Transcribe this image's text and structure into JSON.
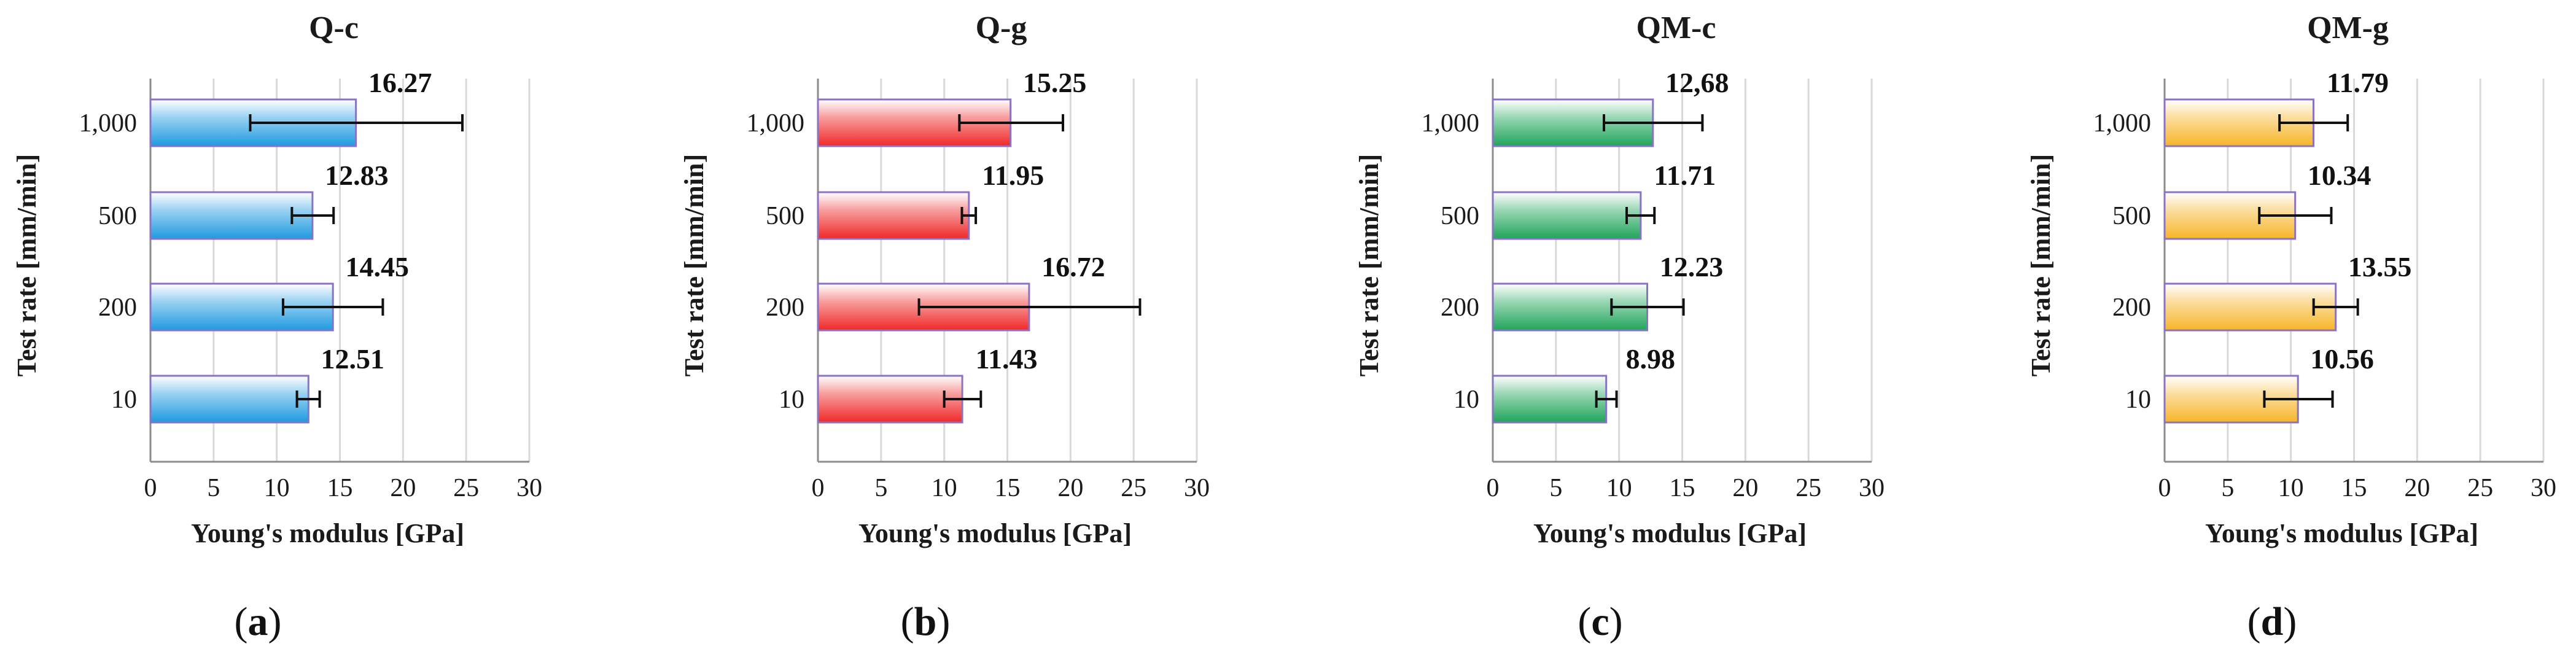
{
  "chart_data": [
    {
      "type": "bar",
      "orientation": "horizontal",
      "title": "Q-c",
      "caption": "a",
      "xlabel": "Young's modulus [GPa]",
      "ylabel": "Test rate [mm/min]",
      "categories": [
        "1,000",
        "500",
        "200",
        "10"
      ],
      "values": [
        16.27,
        12.83,
        14.45,
        12.51
      ],
      "value_labels": [
        "16.27",
        "12.83",
        "14.45",
        "12.51"
      ],
      "error_low": [
        7.9,
        11.2,
        10.5,
        11.6
      ],
      "error_high": [
        24.7,
        14.5,
        18.4,
        13.4
      ],
      "xlim": [
        0,
        30
      ],
      "xticks": [
        "0",
        "5",
        "10",
        "15",
        "20",
        "25",
        "30"
      ],
      "color": "#1e9ae0",
      "grid": true
    },
    {
      "type": "bar",
      "orientation": "horizontal",
      "title": "Q-g",
      "caption": "b",
      "xlabel": "Young's modulus [GPa]",
      "ylabel": "Test rate [mm/min]",
      "categories": [
        "1,000",
        "500",
        "200",
        "10"
      ],
      "values": [
        15.25,
        11.95,
        16.72,
        11.43
      ],
      "value_labels": [
        "15.25",
        "11.95",
        "16.72",
        "11.43"
      ],
      "error_low": [
        11.2,
        11.4,
        8.0,
        10.0
      ],
      "error_high": [
        19.4,
        12.5,
        25.5,
        12.9
      ],
      "xlim": [
        0,
        30
      ],
      "xticks": [
        "0",
        "5",
        "10",
        "15",
        "20",
        "25",
        "30"
      ],
      "color": "#f02828",
      "grid": true
    },
    {
      "type": "bar",
      "orientation": "horizontal",
      "title": "QM-c",
      "caption": "c",
      "xlabel": "Young's modulus [GPa]",
      "ylabel": "Test rate [mm/min]",
      "categories": [
        "1,000",
        "500",
        "200",
        "10"
      ],
      "values": [
        12.68,
        11.71,
        12.23,
        8.98
      ],
      "value_labels": [
        "12,68",
        "11.71",
        "12.23",
        "8.98"
      ],
      "error_low": [
        8.8,
        10.6,
        9.4,
        8.2
      ],
      "error_high": [
        16.6,
        12.8,
        15.1,
        9.8
      ],
      "xlim": [
        0,
        30
      ],
      "xticks": [
        "0",
        "5",
        "10",
        "15",
        "20",
        "25",
        "30"
      ],
      "color": "#1fa55a",
      "grid": true
    },
    {
      "type": "bar",
      "orientation": "horizontal",
      "title": "QM-g",
      "caption": "d",
      "xlabel": "Young's modulus [GPa]",
      "ylabel": "Test rate [mm/min]",
      "categories": [
        "1,000",
        "500",
        "200",
        "10"
      ],
      "values": [
        11.79,
        10.34,
        13.55,
        10.56
      ],
      "value_labels": [
        "11.79",
        "10.34",
        "13.55",
        "10.56"
      ],
      "error_low": [
        9.1,
        7.5,
        11.8,
        7.9
      ],
      "error_high": [
        14.5,
        13.2,
        15.3,
        13.3
      ],
      "xlim": [
        0,
        30
      ],
      "xticks": [
        "0",
        "5",
        "10",
        "15",
        "20",
        "25",
        "30"
      ],
      "color": "#f7b528",
      "grid": true
    }
  ]
}
